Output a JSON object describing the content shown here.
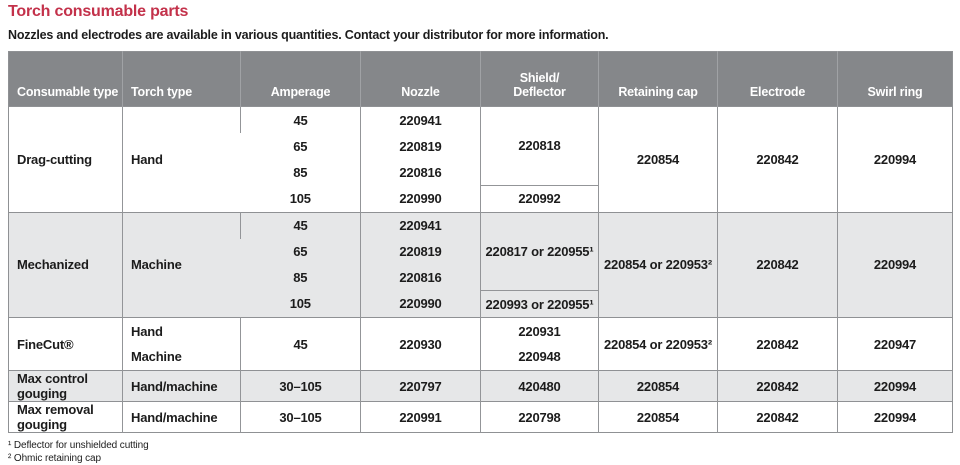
{
  "page": {
    "title": "Torch consumable parts",
    "subtitle": "Nozzles and electrodes are available in various quantities. Contact your distributor for more information.",
    "footnote1": "¹ Deflector for unshielded cutting",
    "footnote2": "² Ohmic retaining cap"
  },
  "colors": {
    "accent_red": "#c3314a",
    "header_gray": "#85878a",
    "alt_row_gray": "#e6e7e8",
    "border_gray": "#939598"
  },
  "table": {
    "headers": {
      "consumable": "Consumable type",
      "torch": "Torch type",
      "amperage": "Amperage",
      "nozzle": "Nozzle",
      "shield_line1": "Shield/",
      "shield_line2": "Deflector",
      "retaining": "Retaining cap",
      "electrode": "Electrode",
      "swirl": "Swirl ring"
    },
    "sections": [
      {
        "consumable": "Drag-cutting",
        "torch": "Hand",
        "rows": [
          {
            "amperage": "45",
            "nozzle": "220941"
          },
          {
            "amperage": "65",
            "nozzle": "220819"
          },
          {
            "amperage": "85",
            "nozzle": "220816"
          },
          {
            "amperage": "105",
            "nozzle": "220990"
          }
        ],
        "shield_top": "220818",
        "shield_bottom": "220992",
        "retaining": "220854",
        "electrode": "220842",
        "swirl": "220994"
      },
      {
        "consumable": "Mechanized",
        "torch": "Machine",
        "rows": [
          {
            "amperage": "45",
            "nozzle": "220941"
          },
          {
            "amperage": "65",
            "nozzle": "220819"
          },
          {
            "amperage": "85",
            "nozzle": "220816"
          },
          {
            "amperage": "105",
            "nozzle": "220990"
          }
        ],
        "shield_top": "220817 or 220955¹",
        "shield_bottom": "220993 or 220955¹",
        "retaining": "220854 or 220953²",
        "electrode": "220842",
        "swirl": "220994"
      },
      {
        "consumable": "FineCut®",
        "torch_lines": [
          "Hand",
          "Machine"
        ],
        "amperage": "45",
        "nozzle": "220930",
        "shield_lines": [
          "220931",
          "220948"
        ],
        "retaining": "220854 or 220953²",
        "electrode": "220842",
        "swirl": "220947"
      },
      {
        "consumable": "Max control gouging",
        "torch": "Hand/machine",
        "amperage": "30–105",
        "nozzle": "220797",
        "shield": "420480",
        "retaining": "220854",
        "electrode": "220842",
        "swirl": "220994"
      },
      {
        "consumable": "Max removal gouging",
        "torch": "Hand/machine",
        "amperage": "30–105",
        "nozzle": "220991",
        "shield": "220798",
        "retaining": "220854",
        "electrode": "220842",
        "swirl": "220994"
      }
    ]
  }
}
